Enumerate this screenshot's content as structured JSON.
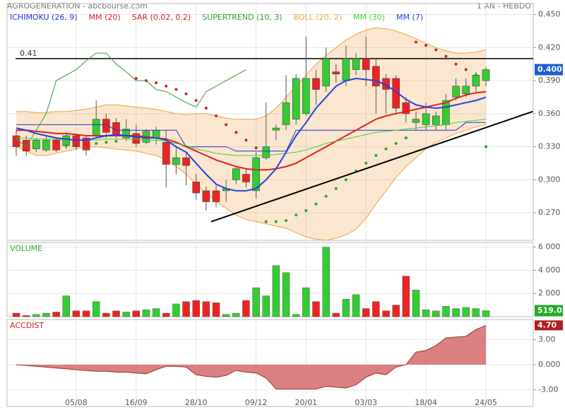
{
  "header": {
    "title": "AGROGENERATION - abcbourse.com",
    "period": "1 AN - HEBDO"
  },
  "chart_data": [
    {
      "type": "candlestick",
      "up_color": "#33cc33",
      "down_color": "#ee2222",
      "open": [
        0.34,
        0.336,
        0.328,
        0.327,
        0.336,
        0.331,
        0.34,
        0.338,
        0.34,
        0.355,
        0.352,
        0.338,
        0.342,
        0.334,
        0.338,
        0.334,
        0.314,
        0.32,
        0.298,
        0.29,
        0.29,
        0.29,
        0.3,
        0.305,
        0.29,
        0.32,
        0.345,
        0.35,
        0.355,
        0.36,
        0.392,
        0.385,
        0.398,
        0.39,
        0.4,
        0.41,
        0.403,
        0.392,
        0.392,
        0.37,
        0.352,
        0.35,
        0.35,
        0.35,
        0.375,
        0.378,
        0.385,
        0.39
      ],
      "high": [
        0.345,
        0.34,
        0.338,
        0.34,
        0.338,
        0.342,
        0.342,
        0.34,
        0.372,
        0.36,
        0.356,
        0.355,
        0.35,
        0.346,
        0.348,
        0.345,
        0.33,
        0.325,
        0.305,
        0.294,
        0.295,
        0.3,
        0.312,
        0.31,
        0.325,
        0.37,
        0.35,
        0.395,
        0.396,
        0.43,
        0.4,
        0.42,
        0.405,
        0.422,
        0.415,
        0.43,
        0.41,
        0.396,
        0.395,
        0.375,
        0.362,
        0.37,
        0.362,
        0.378,
        0.392,
        0.392,
        0.398,
        0.402
      ],
      "low": [
        0.322,
        0.322,
        0.325,
        0.325,
        0.325,
        0.328,
        0.327,
        0.322,
        0.338,
        0.338,
        0.338,
        0.335,
        0.33,
        0.332,
        0.332,
        0.293,
        0.305,
        0.295,
        0.282,
        0.272,
        0.275,
        0.28,
        0.296,
        0.293,
        0.283,
        0.318,
        0.336,
        0.345,
        0.35,
        0.358,
        0.368,
        0.38,
        0.388,
        0.385,
        0.395,
        0.385,
        0.36,
        0.36,
        0.36,
        0.352,
        0.345,
        0.345,
        0.345,
        0.345,
        0.372,
        0.375,
        0.38,
        0.385
      ],
      "close": [
        0.33,
        0.326,
        0.336,
        0.336,
        0.327,
        0.34,
        0.33,
        0.327,
        0.355,
        0.343,
        0.34,
        0.346,
        0.333,
        0.344,
        0.345,
        0.314,
        0.32,
        0.313,
        0.288,
        0.28,
        0.28,
        0.292,
        0.31,
        0.298,
        0.32,
        0.33,
        0.347,
        0.37,
        0.392,
        0.392,
        0.382,
        0.41,
        0.396,
        0.41,
        0.41,
        0.4,
        0.385,
        0.382,
        0.365,
        0.36,
        0.355,
        0.36,
        0.358,
        0.372,
        0.385,
        0.385,
        0.395,
        0.4
      ],
      "series": [
        {
          "name": "ICHIMOKU (26, 9)",
          "color": "#2233cc",
          "style": "line",
          "line_width": 1,
          "values": [
            0.35,
            0.35,
            0.35,
            0.35,
            0.35,
            0.35,
            0.35,
            0.35,
            0.35,
            0.35,
            0.345,
            0.345,
            0.345,
            0.345,
            0.345,
            0.345,
            0.345,
            0.33,
            0.33,
            0.33,
            0.33,
            0.33,
            0.326,
            0.326,
            0.326,
            0.326,
            0.326,
            0.326,
            0.345,
            0.345,
            0.345,
            0.345,
            0.345,
            0.345,
            0.345,
            0.345,
            0.345,
            0.345,
            0.345,
            0.345,
            0.345,
            0.345,
            0.345,
            0.345,
            0.345,
            0.352,
            0.352,
            0.352
          ]
        },
        {
          "name": "MM (20)",
          "color": "#e02020",
          "style": "line",
          "line_width": 2,
          "values": [
            0.345,
            0.345,
            0.344,
            0.343,
            0.342,
            0.342,
            0.341,
            0.34,
            0.34,
            0.34,
            0.34,
            0.34,
            0.34,
            0.339,
            0.338,
            0.337,
            0.334,
            0.33,
            0.326,
            0.322,
            0.318,
            0.315,
            0.312,
            0.31,
            0.309,
            0.309,
            0.31,
            0.312,
            0.315,
            0.32,
            0.325,
            0.33,
            0.335,
            0.34,
            0.345,
            0.35,
            0.355,
            0.358,
            0.36,
            0.362,
            0.364,
            0.366,
            0.368,
            0.37,
            0.374,
            0.377,
            0.379,
            0.38
          ]
        },
        {
          "name": "SAR (0.02, 0.2)",
          "color": "#cc2222",
          "below_color": "#22aa22",
          "style": "dots",
          "values": [
            null,
            null,
            null,
            null,
            null,
            0.331,
            0.331,
            0.332,
            0.333,
            0.334,
            0.335,
            null,
            0.392,
            0.39,
            0.388,
            0.385,
            0.382,
            0.378,
            0.372,
            0.365,
            0.358,
            0.35,
            0.343,
            0.336,
            0.329,
            0.262,
            0.262,
            0.263,
            0.268,
            0.272,
            0.278,
            0.285,
            0.292,
            0.3,
            0.308,
            0.315,
            0.322,
            0.328,
            0.333,
            0.338,
            0.425,
            0.422,
            0.418,
            0.412,
            0.405,
            0.4,
            0.395,
            0.33
          ]
        },
        {
          "name": "SUPERTREND (10, 3)",
          "color": "#339933",
          "style": "line",
          "line_width": 1,
          "values": [
            0.337,
            0.33,
            0.345,
            0.36,
            0.39,
            0.395,
            0.4,
            0.408,
            0.415,
            0.415,
            0.405,
            0.398,
            0.39,
            0.39,
            0.382,
            0.38,
            0.375,
            0.37,
            0.366,
            0.38,
            0.385,
            0.39,
            0.395,
            0.4,
            null,
            null,
            null,
            null,
            null,
            null,
            null,
            null,
            null,
            null,
            null,
            null,
            null,
            null,
            null,
            null,
            null,
            null,
            null,
            null,
            null,
            null,
            null,
            null
          ]
        },
        {
          "name": "BOLL (20, 2)",
          "color": "#f0a040",
          "style": "band",
          "upper": [
            0.362,
            0.362,
            0.361,
            0.361,
            0.362,
            0.362,
            0.363,
            0.364,
            0.366,
            0.368,
            0.368,
            0.367,
            0.366,
            0.365,
            0.364,
            0.362,
            0.36,
            0.359,
            0.36,
            0.36,
            0.358,
            0.356,
            0.355,
            0.355,
            0.355,
            0.358,
            0.365,
            0.375,
            0.385,
            0.395,
            0.405,
            0.413,
            0.42,
            0.427,
            0.432,
            0.436,
            0.438,
            0.437,
            0.435,
            0.432,
            0.428,
            0.424,
            0.42,
            0.417,
            0.415,
            0.415,
            0.416,
            0.418
          ],
          "lower": [
            0.33,
            0.326,
            0.322,
            0.322,
            0.324,
            0.326,
            0.328,
            0.33,
            0.33,
            0.329,
            0.328,
            0.327,
            0.326,
            0.324,
            0.322,
            0.318,
            0.312,
            0.305,
            0.296,
            0.288,
            0.28,
            0.274,
            0.268,
            0.264,
            0.262,
            0.26,
            0.258,
            0.256,
            0.252,
            0.248,
            0.246,
            0.245,
            0.247,
            0.25,
            0.255,
            0.265,
            0.278,
            0.29,
            0.302,
            0.312,
            0.32,
            0.328,
            0.334,
            0.338,
            0.342,
            0.345,
            0.348,
            0.35
          ]
        },
        {
          "name": "MM (30)",
          "color": "#44cc44",
          "style": "line",
          "line_width": 1,
          "values": [
            0.338,
            0.338,
            0.337,
            0.337,
            0.337,
            0.336,
            0.336,
            0.336,
            0.336,
            0.337,
            0.337,
            0.337,
            0.337,
            0.336,
            0.336,
            0.335,
            0.333,
            0.331,
            0.328,
            0.326,
            0.324,
            0.323,
            0.322,
            0.322,
            0.322,
            0.322,
            0.323,
            0.324,
            0.325,
            0.327,
            0.33,
            0.333,
            0.335,
            0.337,
            0.339,
            0.341,
            0.343,
            0.344,
            0.345,
            0.346,
            0.347,
            0.348,
            0.349,
            0.35,
            0.352,
            0.353,
            0.354,
            0.355
          ]
        },
        {
          "name": "MM (7)",
          "color": "#2244dd",
          "style": "line",
          "line_width": 2,
          "values": [
            0.347,
            0.345,
            0.342,
            0.34,
            0.338,
            0.337,
            0.336,
            0.336,
            0.338,
            0.34,
            0.341,
            0.34,
            0.339,
            0.338,
            0.338,
            0.336,
            0.33,
            0.325,
            0.315,
            0.305,
            0.296,
            0.292,
            0.29,
            0.29,
            0.292,
            0.3,
            0.31,
            0.325,
            0.34,
            0.352,
            0.365,
            0.375,
            0.385,
            0.39,
            0.392,
            0.391,
            0.39,
            0.386,
            0.38,
            0.373,
            0.368,
            0.366,
            0.365,
            0.366,
            0.368,
            0.37,
            0.372,
            0.375
          ]
        }
      ],
      "hline": {
        "value": 0.41,
        "label": "0.41"
      },
      "trendline": {
        "x": [
          19.5,
          51.7
        ],
        "y": [
          0.262,
          0.362
        ]
      },
      "last_price": {
        "value": 0.4,
        "label": "0.400",
        "color": "#1a5fd0"
      },
      "ylim": [
        0.245,
        0.46
      ],
      "yticks": [
        {
          "value": 0.27,
          "label": "0.270"
        },
        {
          "value": 0.3,
          "label": "0.300"
        },
        {
          "value": 0.33,
          "label": "0.330"
        },
        {
          "value": 0.36,
          "label": "0.360"
        },
        {
          "value": 0.39,
          "label": "0.390"
        },
        {
          "value": 0.42,
          "label": "0.420"
        },
        {
          "value": 0.45,
          "label": "0.450"
        }
      ],
      "grid": true
    },
    {
      "type": "bar",
      "title": "VOLUME",
      "title_color": "#33aa33",
      "values": [
        300,
        100,
        200,
        300,
        400,
        1800,
        500,
        500,
        1300,
        300,
        500,
        400,
        500,
        600,
        700,
        300,
        1100,
        1300,
        1400,
        1300,
        1200,
        200,
        300,
        1400,
        2500,
        1800,
        4400,
        3800,
        200,
        2500,
        1300,
        6000,
        300,
        1500,
        1900,
        700,
        1300,
        500,
        1000,
        3500,
        2300,
        600,
        500,
        900,
        700,
        800,
        700,
        519
      ],
      "last_label": "519.0",
      "last_color": "#22aa22",
      "ylim": [
        0,
        6400
      ],
      "yticks": [
        {
          "value": 2000,
          "label": "2 000"
        },
        {
          "value": 4000,
          "label": "4 000"
        },
        {
          "value": 6000,
          "label": "6 000"
        }
      ],
      "grid": true
    },
    {
      "type": "area",
      "title": "ACCDIST",
      "title_color": "#cc2222",
      "color": "#d46a6a",
      "line_color": "#a03030",
      "values": [
        0,
        -0.1,
        -0.2,
        -0.3,
        -0.4,
        -0.5,
        -0.6,
        -0.7,
        -0.8,
        -0.8,
        -0.9,
        -0.9,
        -1.0,
        -1.1,
        -0.6,
        -0.2,
        -0.2,
        -0.3,
        -1.2,
        -1.4,
        -1.5,
        -1.3,
        -0.7,
        -0.9,
        -1.0,
        -1.6,
        -2.9,
        -2.9,
        -2.9,
        -2.9,
        -2.9,
        -2.6,
        -2.7,
        -2.8,
        -2.4,
        -1.5,
        -1.0,
        -1.2,
        -0.3,
        0.0,
        1.5,
        1.7,
        2.3,
        3.2,
        3.3,
        3.4,
        4.2,
        4.7
      ],
      "last_label": "4.70",
      "last_color": "#b02020",
      "categories": [
        null,
        null,
        null,
        null,
        null,
        null,
        "05/08",
        null,
        null,
        null,
        null,
        null,
        "16/09",
        null,
        null,
        null,
        null,
        null,
        "28/10",
        null,
        null,
        null,
        null,
        null,
        "09/12",
        null,
        null,
        null,
        null,
        "20/01",
        null,
        null,
        null,
        null,
        null,
        "03/03",
        null,
        null,
        null,
        null,
        null,
        "18/04",
        null,
        null,
        null,
        null,
        null,
        "24/05"
      ],
      "ylim": [
        -5,
        5.4
      ],
      "yticks": [
        {
          "value": -3,
          "label": "-3.00"
        },
        {
          "value": 0,
          "label": "0.000"
        },
        {
          "value": 3,
          "label": "3.00"
        }
      ],
      "grid": true
    }
  ]
}
